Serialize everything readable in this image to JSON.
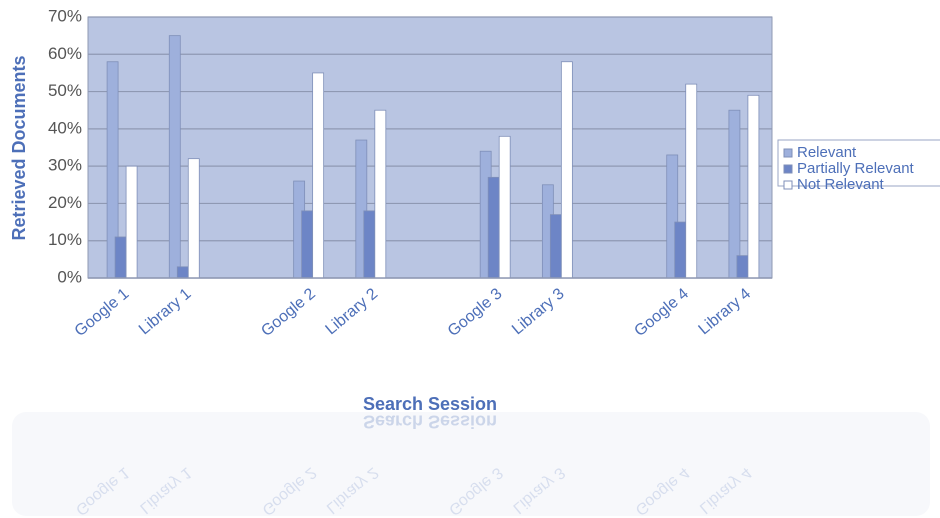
{
  "chart_data": {
    "type": "bar",
    "x_label": "Search Session",
    "y_label": "Retrieved Documents",
    "categories": [
      "Google 1",
      "Library 1",
      null,
      "Google 2",
      "Library 2",
      null,
      "Google 3",
      "Library 3",
      null,
      "Google 4",
      "Library 4"
    ],
    "series": [
      {
        "name": "Relevant",
        "color": "#9eb0dc",
        "values": [
          58,
          65,
          null,
          26,
          37,
          null,
          34,
          25,
          null,
          33,
          45
        ]
      },
      {
        "name": "Partially Relevant",
        "color": "#6d85c6",
        "values": [
          11,
          3,
          null,
          18,
          18,
          null,
          27,
          17,
          null,
          15,
          6
        ]
      },
      {
        "name": "Not Relevant",
        "color": "#ffffff",
        "values": [
          30,
          32,
          null,
          55,
          45,
          null,
          38,
          58,
          null,
          52,
          49
        ]
      }
    ],
    "ylim": [
      0,
      70
    ],
    "yticks": [
      {
        "value": 0,
        "label": "0%"
      },
      {
        "value": 10,
        "label": "10%"
      },
      {
        "value": 20,
        "label": "20%"
      },
      {
        "value": 30,
        "label": "30%"
      },
      {
        "value": 40,
        "label": "40%"
      },
      {
        "value": 50,
        "label": "50%"
      },
      {
        "value": 60,
        "label": "60%"
      },
      {
        "value": 70,
        "label": "70%"
      }
    ],
    "grid": true,
    "legend": "right"
  }
}
